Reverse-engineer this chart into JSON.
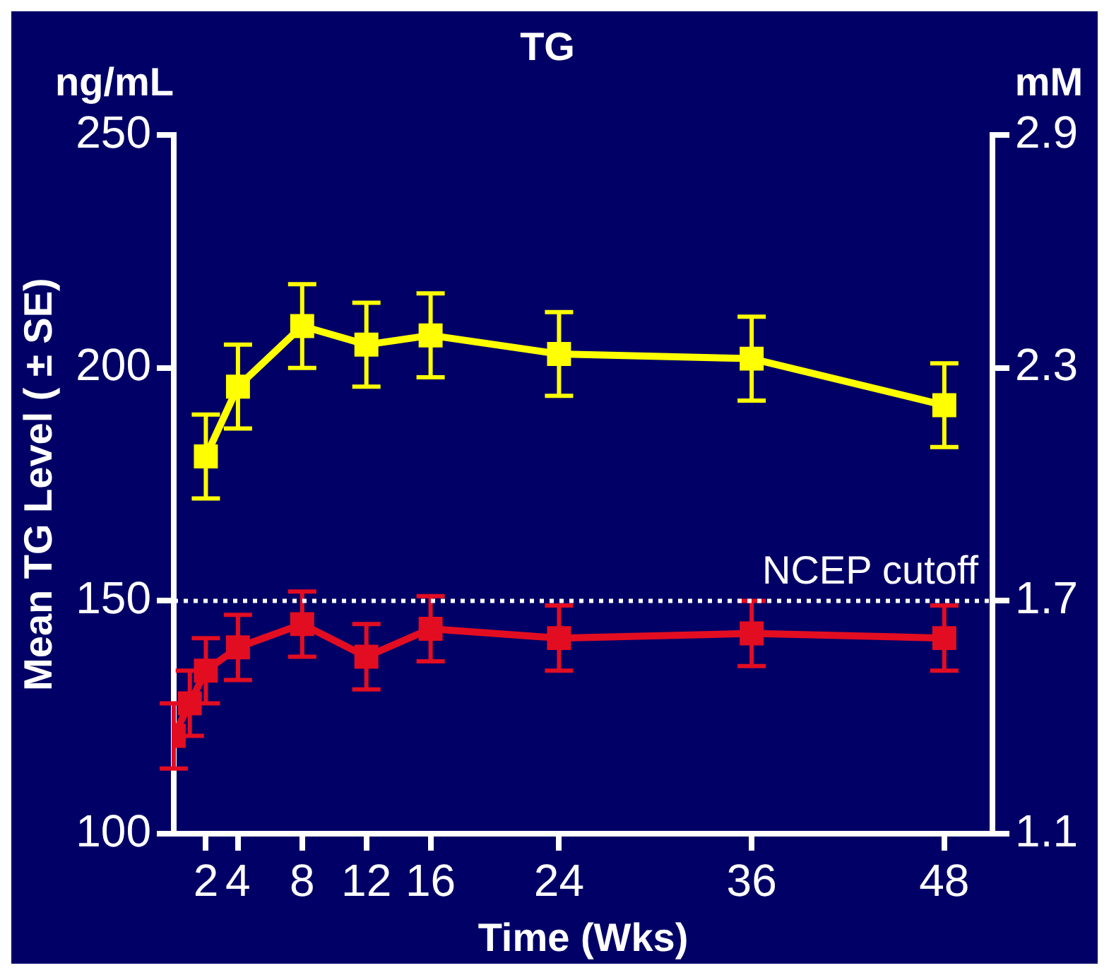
{
  "chart_data": {
    "type": "line",
    "title": "TG",
    "xlabel": "Time (Wks)",
    "ylabel": "Mean TG Level ( ± SE)",
    "y2label": "mM",
    "annotations": [
      "ng/mL"
    ],
    "xlim": [
      0,
      51
    ],
    "xticks": [
      2,
      4,
      8,
      12,
      16,
      24,
      36,
      48
    ],
    "ylim": [
      100,
      250
    ],
    "yticks": [
      100,
      150,
      200,
      250
    ],
    "y2lim": [
      1.1,
      2.9
    ],
    "y2ticks": [
      1.1,
      1.7,
      2.3,
      2.9
    ],
    "marker": "square",
    "grid": false,
    "legend": false,
    "ref_lines": [
      {
        "axis": "y",
        "value": 150,
        "label": "NCEP cutoff",
        "color": "#ffffff",
        "line_style": "dotted"
      }
    ],
    "series": [
      {
        "color": "#ffff00",
        "x": [
          2,
          4,
          8,
          12,
          16,
          24,
          36,
          48
        ],
        "values": [
          181,
          196,
          209,
          205,
          207,
          203,
          202,
          192
        ],
        "errors": [
          9,
          9,
          9,
          9,
          9,
          9,
          9,
          9
        ]
      },
      {
        "color": "#e30d22",
        "x": [
          0,
          1,
          2,
          4,
          8,
          12,
          16,
          24,
          36,
          48
        ],
        "values": [
          121,
          128,
          135,
          140,
          145,
          138,
          144,
          142,
          143,
          142
        ],
        "errors": [
          7,
          7,
          7,
          7,
          7,
          7,
          7,
          7,
          7,
          7
        ]
      }
    ]
  }
}
